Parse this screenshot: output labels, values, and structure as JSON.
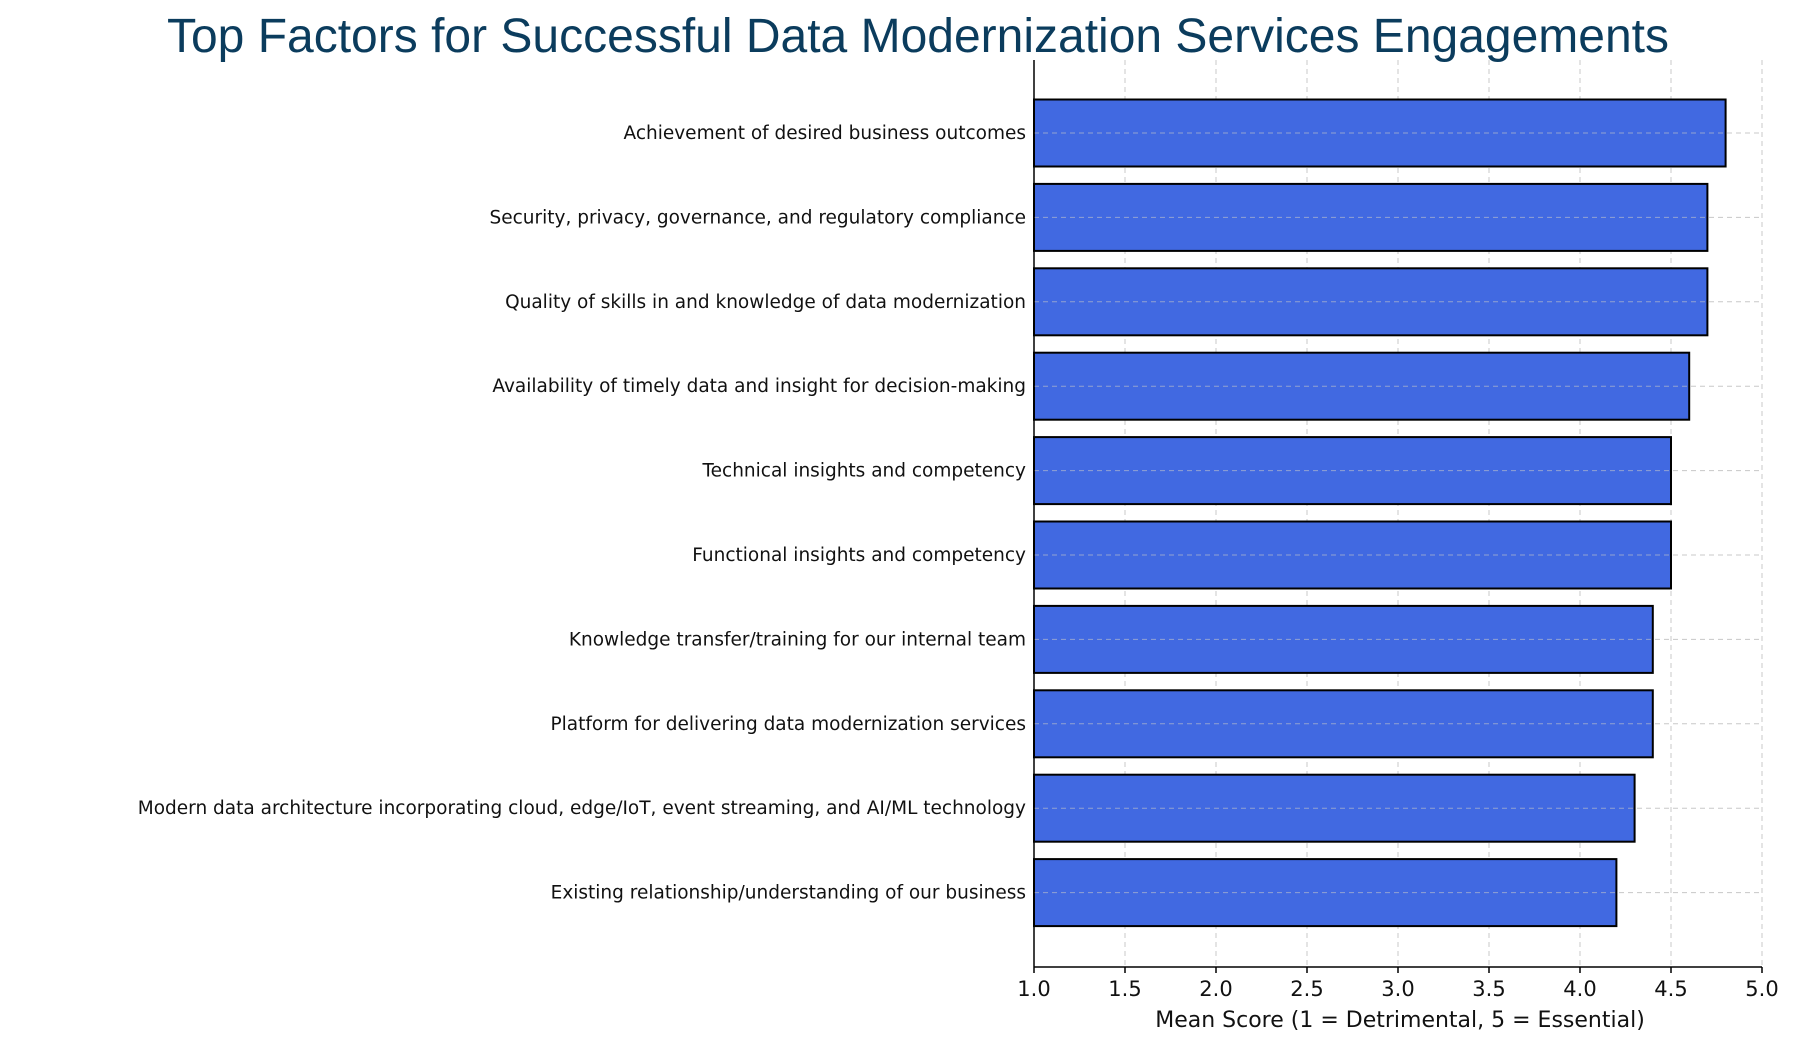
{
  "chart_data": {
    "type": "bar",
    "orientation": "horizontal",
    "title": "Top Factors for Successful Data Modernization Services Engagements",
    "xlabel": "Mean Score (1 = Detrimental, 5 = Essential)",
    "ylabel": "",
    "xlim": [
      1.0,
      5.0
    ],
    "xticks": [
      "1.0",
      "1.5",
      "2.0",
      "2.5",
      "3.0",
      "3.5",
      "4.0",
      "4.5",
      "5.0"
    ],
    "grid": true,
    "categories": [
      "Achievement of desired business outcomes",
      "Security, privacy, governance, and regulatory compliance",
      "Quality of skills in and knowledge of data modernization",
      "Availability of timely data and insight for decision-making",
      "Technical insights and competency",
      "Functional insights and competency",
      "Knowledge transfer/training for our internal team",
      "Platform for delivering data modernization services",
      "Modern data architecture incorporating cloud, edge/IoT, event streaming, and AI/ML technology",
      "Existing relationship/understanding of our business"
    ],
    "values": [
      4.8,
      4.7,
      4.7,
      4.6,
      4.5,
      4.5,
      4.4,
      4.4,
      4.3,
      4.2
    ],
    "colors": {
      "bar": "#4169e1",
      "edge": "#000000",
      "title": "#0b3c5d",
      "grid": "#c8c8c8"
    }
  }
}
